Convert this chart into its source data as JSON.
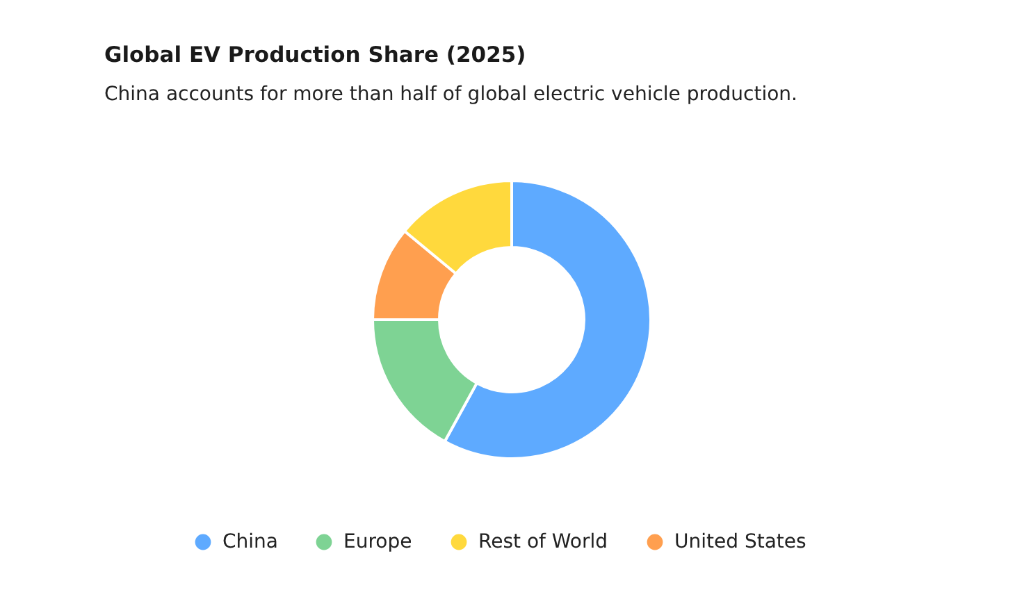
{
  "chart_data": {
    "type": "donut",
    "title": "Global EV Production Share (2025)",
    "subtitle": "China accounts for more than half of global electric vehicle production.",
    "categories": [
      "China",
      "Europe",
      "United States",
      "Rest of World"
    ],
    "values": [
      58,
      17,
      11,
      14
    ],
    "colors": [
      "#5eaaff",
      "#7ed394",
      "#ff9f4f",
      "#ffd93d"
    ],
    "legend": "bottom"
  }
}
